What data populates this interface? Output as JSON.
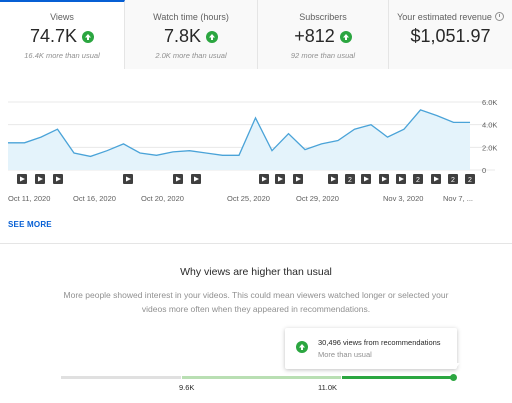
{
  "metrics": [
    {
      "title": "Views",
      "value": "74.7K",
      "sub": "16.4K more than usual",
      "up": true
    },
    {
      "title": "Watch time (hours)",
      "value": "7.8K",
      "sub": "2.0K more than usual",
      "up": true
    },
    {
      "title": "Subscribers",
      "value": "+812",
      "sub": "92 more than usual",
      "up": true
    },
    {
      "title": "Your estimated revenue",
      "value": "$1,051.97",
      "sub": "",
      "up": false
    }
  ],
  "colors": {
    "accent": "#065fd4",
    "positive": "#2ba640",
    "line": "#4aa3d8",
    "fill": "#e4f3fb"
  },
  "chart_data": {
    "type": "area",
    "ylim": [
      0,
      6000
    ],
    "yticks": [
      "0",
      "2.0K",
      "4.0K",
      "6.0K"
    ],
    "x_labels": [
      "Oct 11, 2020",
      "Oct 16, 2020",
      "Oct 20, 2020",
      "Oct 25, 2020",
      "Oct 29, 2020",
      "Nov 3, 2020",
      "Nov 7, ..."
    ],
    "x": [
      "Oct 10",
      "Oct 11",
      "Oct 12",
      "Oct 13",
      "Oct 14",
      "Oct 15",
      "Oct 16",
      "Oct 17",
      "Oct 18",
      "Oct 19",
      "Oct 20",
      "Oct 21",
      "Oct 22",
      "Oct 23",
      "Oct 24",
      "Oct 25",
      "Oct 26",
      "Oct 27",
      "Oct 28",
      "Oct 29",
      "Oct 30",
      "Oct 31",
      "Nov 1",
      "Nov 2",
      "Nov 3",
      "Nov 4",
      "Nov 5",
      "Nov 6",
      "Nov 7"
    ],
    "values": [
      2400,
      2400,
      2900,
      3600,
      1500,
      1200,
      1700,
      2300,
      1500,
      1300,
      1600,
      1700,
      1500,
      1300,
      1300,
      4600,
      1700,
      3200,
      1800,
      2300,
      2600,
      3600,
      4000,
      2900,
      3600,
      5300,
      4800,
      4200,
      4200
    ],
    "markers": [
      "play",
      "play",
      "play",
      "play",
      "play",
      "play",
      "play",
      "play",
      "play",
      "play",
      "2",
      "play",
      "play",
      "play",
      "2",
      "play",
      "2",
      "2",
      "play",
      "2"
    ]
  },
  "see_more": "SEE MORE",
  "why": {
    "title": "Why views are higher than usual",
    "desc": "More people showed interest in your videos. This could mean viewers watched longer or selected your videos more often when they appeared in recommendations."
  },
  "tooltip": {
    "line1": "30,496 views from recommendations",
    "line2": "More than usual"
  },
  "range": {
    "low": "9.6K",
    "high": "11.0K"
  }
}
